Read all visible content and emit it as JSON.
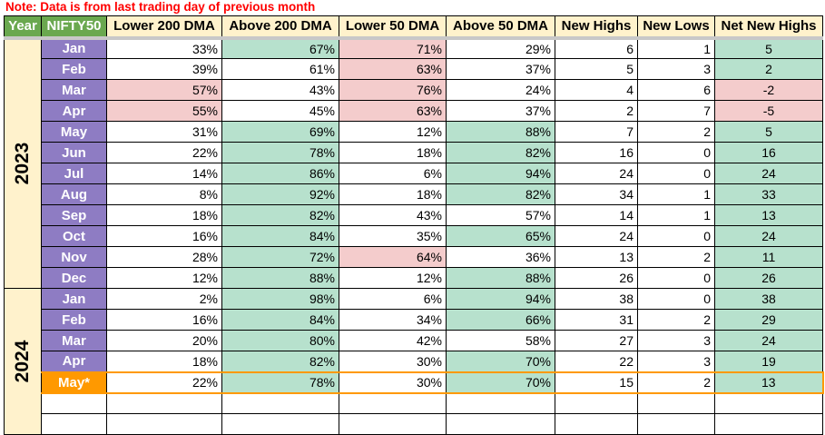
{
  "note": "Note: Data is from last trading day of previous month",
  "headers": [
    "Year",
    "NIFTY50",
    "Lower 200 DMA",
    "Above 200 DMA",
    "Lower 50 DMA",
    "Above 50 DMA",
    "New Highs",
    "New Lows",
    "Net New Highs"
  ],
  "colors": {
    "green": "#b7e1cd",
    "red": "#f4cccc",
    "month": "#8e7cc3",
    "current": "#ff9900",
    "header": "#fff2cc",
    "header_accent": "#6aa84f"
  },
  "years": [
    {
      "year": "2023",
      "rows": [
        {
          "month": "Jan",
          "values": [
            "33%",
            "67%",
            "71%",
            "29%",
            "6",
            "1",
            "5"
          ],
          "fills": [
            "w",
            "g",
            "r",
            "w",
            "w",
            "w",
            "g"
          ]
        },
        {
          "month": "Feb",
          "values": [
            "39%",
            "61%",
            "63%",
            "37%",
            "5",
            "3",
            "2"
          ],
          "fills": [
            "w",
            "w",
            "r",
            "w",
            "w",
            "w",
            "g"
          ]
        },
        {
          "month": "Mar",
          "values": [
            "57%",
            "43%",
            "76%",
            "24%",
            "4",
            "6",
            "-2"
          ],
          "fills": [
            "r",
            "w",
            "r",
            "w",
            "w",
            "w",
            "r"
          ]
        },
        {
          "month": "Apr",
          "values": [
            "55%",
            "45%",
            "63%",
            "37%",
            "2",
            "7",
            "-5"
          ],
          "fills": [
            "r",
            "w",
            "r",
            "w",
            "w",
            "w",
            "r"
          ]
        },
        {
          "month": "May",
          "values": [
            "31%",
            "69%",
            "12%",
            "88%",
            "7",
            "2",
            "5"
          ],
          "fills": [
            "w",
            "g",
            "w",
            "g",
            "w",
            "w",
            "g"
          ]
        },
        {
          "month": "Jun",
          "values": [
            "22%",
            "78%",
            "18%",
            "82%",
            "16",
            "0",
            "16"
          ],
          "fills": [
            "w",
            "g",
            "w",
            "g",
            "w",
            "w",
            "g"
          ]
        },
        {
          "month": "Jul",
          "values": [
            "14%",
            "86%",
            "6%",
            "94%",
            "24",
            "0",
            "24"
          ],
          "fills": [
            "w",
            "g",
            "w",
            "g",
            "w",
            "w",
            "g"
          ]
        },
        {
          "month": "Aug",
          "values": [
            "8%",
            "92%",
            "18%",
            "82%",
            "34",
            "1",
            "33"
          ],
          "fills": [
            "w",
            "g",
            "w",
            "g",
            "w",
            "w",
            "g"
          ]
        },
        {
          "month": "Sep",
          "values": [
            "18%",
            "82%",
            "43%",
            "57%",
            "14",
            "1",
            "13"
          ],
          "fills": [
            "w",
            "g",
            "w",
            "w",
            "w",
            "w",
            "g"
          ]
        },
        {
          "month": "Oct",
          "values": [
            "16%",
            "84%",
            "35%",
            "65%",
            "24",
            "0",
            "24"
          ],
          "fills": [
            "w",
            "g",
            "w",
            "g",
            "w",
            "w",
            "g"
          ]
        },
        {
          "month": "Nov",
          "values": [
            "28%",
            "72%",
            "64%",
            "36%",
            "13",
            "2",
            "11"
          ],
          "fills": [
            "w",
            "g",
            "r",
            "w",
            "w",
            "w",
            "g"
          ]
        },
        {
          "month": "Dec",
          "values": [
            "12%",
            "88%",
            "12%",
            "88%",
            "26",
            "0",
            "26"
          ],
          "fills": [
            "w",
            "g",
            "w",
            "g",
            "w",
            "w",
            "g"
          ]
        }
      ]
    },
    {
      "year": "2024",
      "rows": [
        {
          "month": "Jan",
          "values": [
            "2%",
            "98%",
            "6%",
            "94%",
            "38",
            "0",
            "38"
          ],
          "fills": [
            "w",
            "g",
            "w",
            "g",
            "w",
            "w",
            "g"
          ]
        },
        {
          "month": "Feb",
          "values": [
            "16%",
            "84%",
            "34%",
            "66%",
            "31",
            "2",
            "29"
          ],
          "fills": [
            "w",
            "g",
            "w",
            "g",
            "w",
            "w",
            "g"
          ]
        },
        {
          "month": "Mar",
          "values": [
            "20%",
            "80%",
            "42%",
            "58%",
            "27",
            "3",
            "24"
          ],
          "fills": [
            "w",
            "g",
            "w",
            "w",
            "w",
            "w",
            "g"
          ]
        },
        {
          "month": "Apr",
          "values": [
            "18%",
            "82%",
            "30%",
            "70%",
            "22",
            "3",
            "19"
          ],
          "fills": [
            "w",
            "g",
            "w",
            "g",
            "w",
            "w",
            "g"
          ]
        },
        {
          "month": "May*",
          "current": true,
          "values": [
            "22%",
            "78%",
            "30%",
            "70%",
            "15",
            "2",
            "13"
          ],
          "fills": [
            "w",
            "g",
            "w",
            "g",
            "w",
            "w",
            "g"
          ]
        }
      ]
    }
  ]
}
